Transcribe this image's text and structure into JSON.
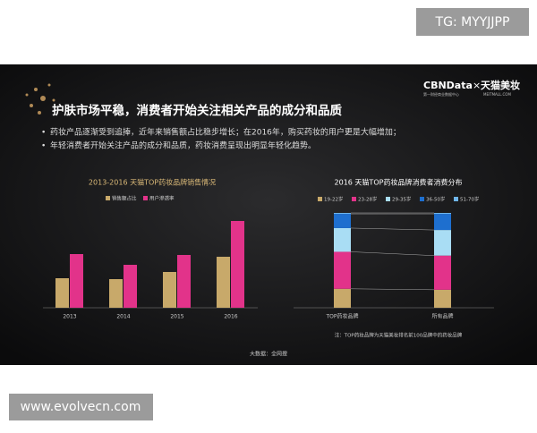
{
  "watermark_top": "TG: MYYJJPP",
  "watermark_bottom": "www.evolvecn.com",
  "logo": {
    "brand": "CBNData",
    "times": "×",
    "partner": "天猫美妆",
    "sub_left": "第一财经商业数据中心",
    "sub_right": "MEITMALL.COM"
  },
  "slide_title": "护肤市场平稳，消费者开始关注相关产品的成分和品质",
  "bullets": [
    "药妆产品逐渐受到追捧，近年来销售额占比稳步增长；在2016年，购买药妆的用户更是大幅增加；",
    "年轻消费者开始关注产品的成分和品质，药妆消费呈现出明显年轻化趋势。"
  ],
  "source": "大数据：全网搜",
  "chart_data": [
    {
      "type": "bar",
      "title": "2013-2016 天猫TOP药妆品牌销售情况",
      "categories": [
        "2013",
        "2014",
        "2015",
        "2016"
      ],
      "series": [
        {
          "name": "销售额占比",
          "color": "#c8a96a",
          "values": [
            33,
            32,
            40,
            57
          ]
        },
        {
          "name": "用户渗透率",
          "color": "#e2338a",
          "values": [
            60,
            48,
            59,
            97
          ]
        }
      ]
    },
    {
      "type": "stacked_bar",
      "title": "2016  天猫TOP药妆品牌消费者消费分布",
      "categories": [
        "TOP药妆品牌",
        "所有品牌"
      ],
      "series": [
        {
          "name": "19-22岁",
          "color": "#c8a96a",
          "values": [
            20,
            19
          ]
        },
        {
          "name": "23-28岁",
          "color": "#e2338a",
          "values": [
            39,
            36
          ]
        },
        {
          "name": "29-35岁",
          "color": "#a9ddf4",
          "values": [
            25,
            27
          ]
        },
        {
          "name": "36-50岁",
          "color": "#1e6fcf",
          "values": [
            15,
            17
          ]
        },
        {
          "name": "51-70岁",
          "color": "#6fb6ec",
          "values": [
            1,
            1
          ]
        }
      ],
      "note": "注：TOP药妆品牌为天猫美妆排名前100品牌中的药妆品牌"
    }
  ]
}
